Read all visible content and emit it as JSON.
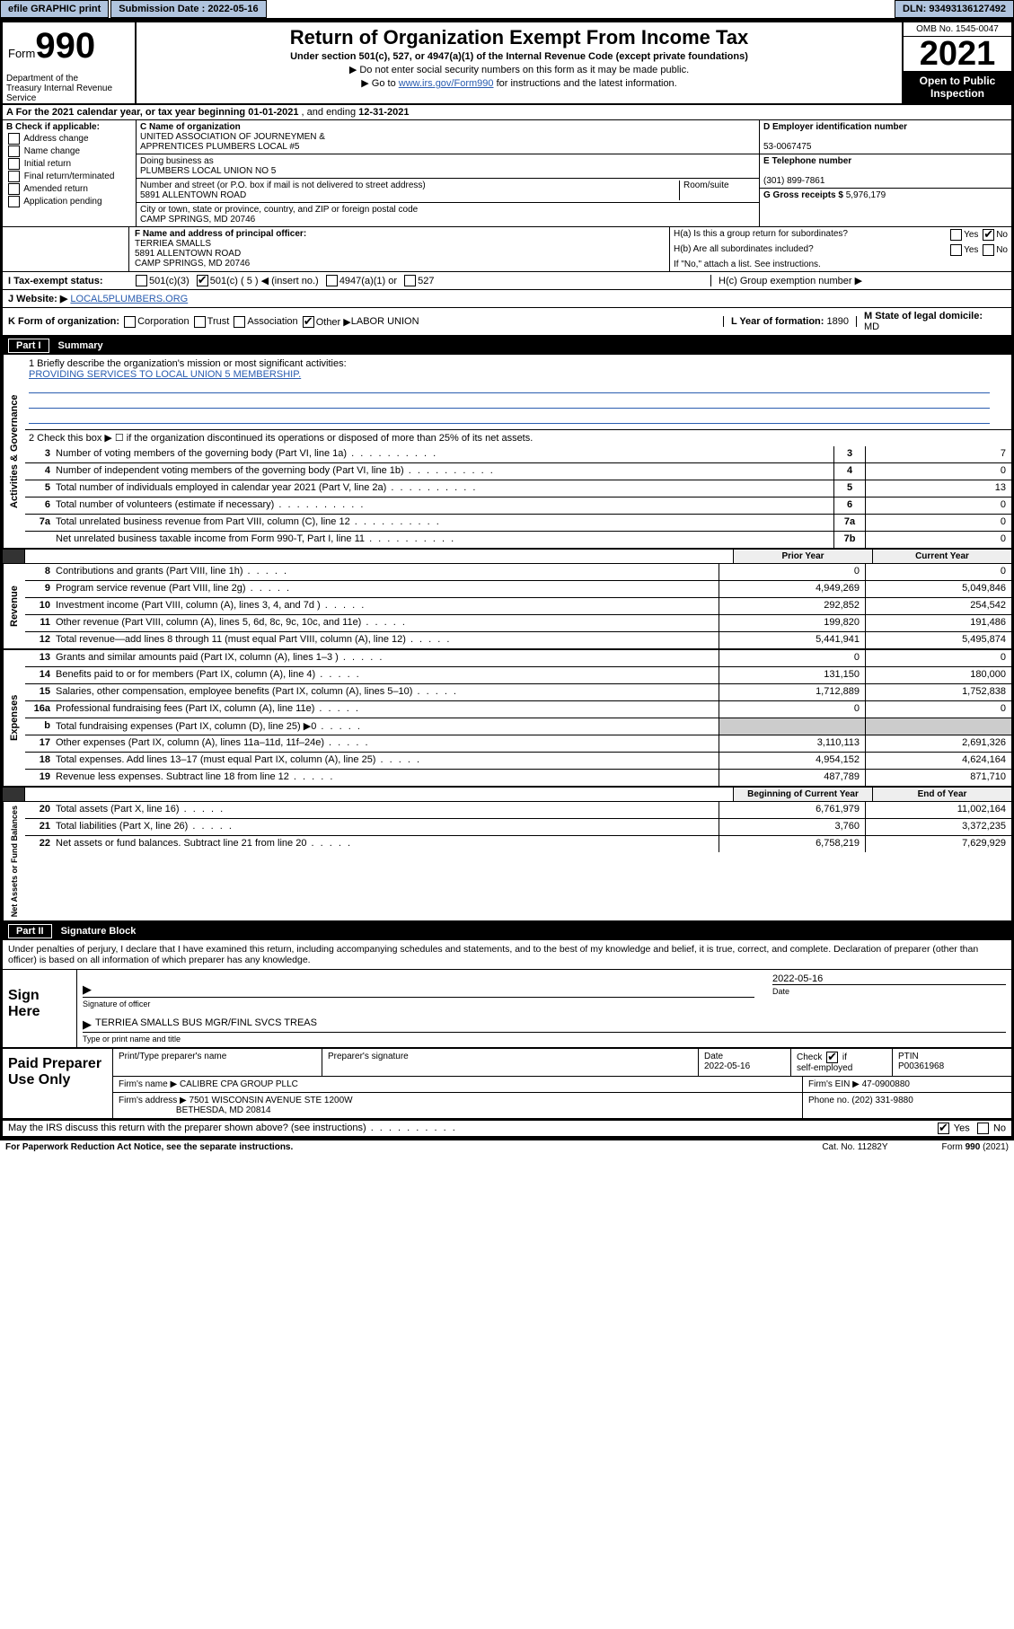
{
  "topbar": {
    "efile_label": "efile GRAPHIC print",
    "submission_label": "Submission Date : 2022-05-16",
    "dln_label": "DLN: 93493136127492"
  },
  "header": {
    "form_prefix": "Form",
    "form_number": "990",
    "dept": "Department of the Treasury Internal Revenue Service",
    "title": "Return of Organization Exempt From Income Tax",
    "sub1": "Under section 501(c), 527, or 4947(a)(1) of the Internal Revenue Code (except private foundations)",
    "instr1": "▶ Do not enter social security numbers on this form as it may be made public.",
    "instr2_pre": "▶ Go to ",
    "instr2_link": "www.irs.gov/Form990",
    "instr2_post": " for instructions and the latest information.",
    "omb": "OMB No. 1545-0047",
    "year": "2021",
    "open_pub": "Open to Public Inspection"
  },
  "secA": {
    "label_pre": "A For the 2021 calendar year, or tax year beginning ",
    "begin": "01-01-2021",
    "mid": " , and ending ",
    "end": "12-31-2021"
  },
  "secB": {
    "label": "B Check if applicable:",
    "opts": [
      "Address change",
      "Name change",
      "Initial return",
      "Final return/terminated",
      "Amended return",
      "Application pending"
    ]
  },
  "secC": {
    "name_label": "C Name of organization",
    "name1": "UNITED ASSOCIATION OF JOURNEYMEN &",
    "name2": "APPRENTICES PLUMBERS LOCAL #5",
    "dba_label": "Doing business as",
    "dba": "PLUMBERS LOCAL UNION NO 5",
    "street_label": "Number and street (or P.O. box if mail is not delivered to street address)",
    "room_label": "Room/suite",
    "street": "5891 ALLENTOWN ROAD",
    "city_label": "City or town, state or province, country, and ZIP or foreign postal code",
    "city": "CAMP SPRINGS, MD  20746"
  },
  "secD": {
    "label": "D Employer identification number",
    "value": "53-0067475"
  },
  "secE": {
    "label": "E Telephone number",
    "value": "(301) 899-7861"
  },
  "secG": {
    "label": "G Gross receipts $",
    "value": "5,976,179"
  },
  "secF": {
    "label": "F Name and address of principal officer:",
    "name": "TERRIEA SMALLS",
    "addr1": "5891 ALLENTOWN ROAD",
    "addr2": "CAMP SPRINGS, MD  20746"
  },
  "secH": {
    "a_label": "H(a)  Is this a group return for subordinates?",
    "a_yes": "Yes",
    "a_no": "No",
    "b_label": "H(b)  Are all subordinates included?",
    "b_yes": "Yes",
    "b_no": "No",
    "b_note": "If \"No,\" attach a list. See instructions.",
    "c_label": "H(c)  Group exemption number ▶"
  },
  "secI": {
    "label": "I  Tax-exempt status:",
    "c3": "501(c)(3)",
    "c_ins": "501(c) ( 5 ) ◀ (insert no.)",
    "a1": "4947(a)(1) or",
    "s527": "527"
  },
  "secJ": {
    "label": "J  Website: ▶",
    "value": "LOCAL5PLUMBERS.ORG"
  },
  "secK": {
    "label": "K Form of organization:",
    "corp": "Corporation",
    "trust": "Trust",
    "assoc": "Association",
    "other": "Other ▶",
    "other_val": "LABOR UNION"
  },
  "secL": {
    "label": "L Year of formation:",
    "value": "1890"
  },
  "secM": {
    "label": "M State of legal domicile:",
    "value": "MD"
  },
  "partI": {
    "part_label": "Part I",
    "title": "Summary",
    "line1_label": "1  Briefly describe the organization's mission or most significant activities:",
    "mission": "PROVIDING SERVICES TO LOCAL UNION 5 MEMBERSHIP.",
    "line2": "2  Check this box ▶ ☐  if the organization discontinued its operations or disposed of more than 25% of its net assets.",
    "governance_label": "Activities & Governance",
    "revenue_label": "Revenue",
    "expenses_label": "Expenses",
    "netassets_label": "Net Assets or Fund Balances",
    "prior_year": "Prior Year",
    "current_year": "Current Year",
    "boy": "Beginning of Current Year",
    "eoy": "End of Year",
    "lines_gov": [
      {
        "n": "3",
        "desc": "Number of voting members of the governing body (Part VI, line 1a)",
        "cell": "3",
        "val": "7"
      },
      {
        "n": "4",
        "desc": "Number of independent voting members of the governing body (Part VI, line 1b)",
        "cell": "4",
        "val": "0"
      },
      {
        "n": "5",
        "desc": "Total number of individuals employed in calendar year 2021 (Part V, line 2a)",
        "cell": "5",
        "val": "13"
      },
      {
        "n": "6",
        "desc": "Total number of volunteers (estimate if necessary)",
        "cell": "6",
        "val": "0"
      },
      {
        "n": "7a",
        "desc": "Total unrelated business revenue from Part VIII, column (C), line 12",
        "cell": "7a",
        "val": "0"
      },
      {
        "n": "",
        "desc": "Net unrelated business taxable income from Form 990-T, Part I, line 11",
        "cell": "7b",
        "val": "0"
      }
    ],
    "lines_rev": [
      {
        "n": "8",
        "desc": "Contributions and grants (Part VIII, line 1h)",
        "py": "0",
        "cy": "0"
      },
      {
        "n": "9",
        "desc": "Program service revenue (Part VIII, line 2g)",
        "py": "4,949,269",
        "cy": "5,049,846"
      },
      {
        "n": "10",
        "desc": "Investment income (Part VIII, column (A), lines 3, 4, and 7d )",
        "py": "292,852",
        "cy": "254,542"
      },
      {
        "n": "11",
        "desc": "Other revenue (Part VIII, column (A), lines 5, 6d, 8c, 9c, 10c, and 11e)",
        "py": "199,820",
        "cy": "191,486"
      },
      {
        "n": "12",
        "desc": "Total revenue—add lines 8 through 11 (must equal Part VIII, column (A), line 12)",
        "py": "5,441,941",
        "cy": "5,495,874"
      }
    ],
    "lines_exp": [
      {
        "n": "13",
        "desc": "Grants and similar amounts paid (Part IX, column (A), lines 1–3 )",
        "py": "0",
        "cy": "0"
      },
      {
        "n": "14",
        "desc": "Benefits paid to or for members (Part IX, column (A), line 4)",
        "py": "131,150",
        "cy": "180,000"
      },
      {
        "n": "15",
        "desc": "Salaries, other compensation, employee benefits (Part IX, column (A), lines 5–10)",
        "py": "1,712,889",
        "cy": "1,752,838"
      },
      {
        "n": "16a",
        "desc": "Professional fundraising fees (Part IX, column (A), line 11e)",
        "py": "0",
        "cy": "0"
      },
      {
        "n": "b",
        "desc": "Total fundraising expenses (Part IX, column (D), line 25) ▶0",
        "py": "",
        "cy": "",
        "shaded": true
      },
      {
        "n": "17",
        "desc": "Other expenses (Part IX, column (A), lines 11a–11d, 11f–24e)",
        "py": "3,110,113",
        "cy": "2,691,326"
      },
      {
        "n": "18",
        "desc": "Total expenses. Add lines 13–17 (must equal Part IX, column (A), line 25)",
        "py": "4,954,152",
        "cy": "4,624,164"
      },
      {
        "n": "19",
        "desc": "Revenue less expenses. Subtract line 18 from line 12",
        "py": "487,789",
        "cy": "871,710"
      }
    ],
    "lines_net": [
      {
        "n": "20",
        "desc": "Total assets (Part X, line 16)",
        "py": "6,761,979",
        "cy": "11,002,164"
      },
      {
        "n": "21",
        "desc": "Total liabilities (Part X, line 26)",
        "py": "3,760",
        "cy": "3,372,235"
      },
      {
        "n": "22",
        "desc": "Net assets or fund balances. Subtract line 21 from line 20",
        "py": "6,758,219",
        "cy": "7,629,929"
      }
    ]
  },
  "partII": {
    "part_label": "Part II",
    "title": "Signature Block",
    "decl": "Under penalties of perjury, I declare that I have examined this return, including accompanying schedules and statements, and to the best of my knowledge and belief, it is true, correct, and complete. Declaration of preparer (other than officer) is based on all information of which preparer has any knowledge.",
    "sign_here": "Sign Here",
    "sig_officer_lbl": "Signature of officer",
    "date_lbl": "Date",
    "date_val": "2022-05-16",
    "officer_name": "TERRIEA SMALLS  BUS MGR/FINL SVCS TREAS",
    "name_title_lbl": "Type or print name and title"
  },
  "paid": {
    "lbl": "Paid Preparer Use Only",
    "preparer_name_lbl": "Print/Type preparer's name",
    "preparer_sig_lbl": "Preparer's signature",
    "date_lbl": "Date",
    "date_val": "2022-05-16",
    "check_lbl": "Check ☑ if self-employed",
    "ptin_lbl": "PTIN",
    "ptin": "P00361968",
    "firm_name_lbl": "Firm's name    ▶",
    "firm_name": "CALIBRE CPA GROUP PLLC",
    "firm_ein_lbl": "Firm's EIN ▶",
    "firm_ein": "47-0900880",
    "firm_addr_lbl": "Firm's address ▶",
    "firm_addr1": "7501 WISCONSIN AVENUE STE 1200W",
    "firm_addr2": "BETHESDA, MD  20814",
    "phone_lbl": "Phone no.",
    "phone": "(202) 331-9880"
  },
  "may_irs": {
    "q": "May the IRS discuss this return with the preparer shown above? (see instructions)",
    "yes": "Yes",
    "no": "No"
  },
  "footer": {
    "pra": "For Paperwork Reduction Act Notice, see the separate instructions.",
    "cat": "Cat. No. 11282Y",
    "form": "Form 990 (2021)"
  },
  "colors": {
    "button_bg": "#b0c4de",
    "link": "#2a5db0",
    "shade": "#cccccc",
    "header_bg": "#000000",
    "header_fg": "#ffffff"
  }
}
